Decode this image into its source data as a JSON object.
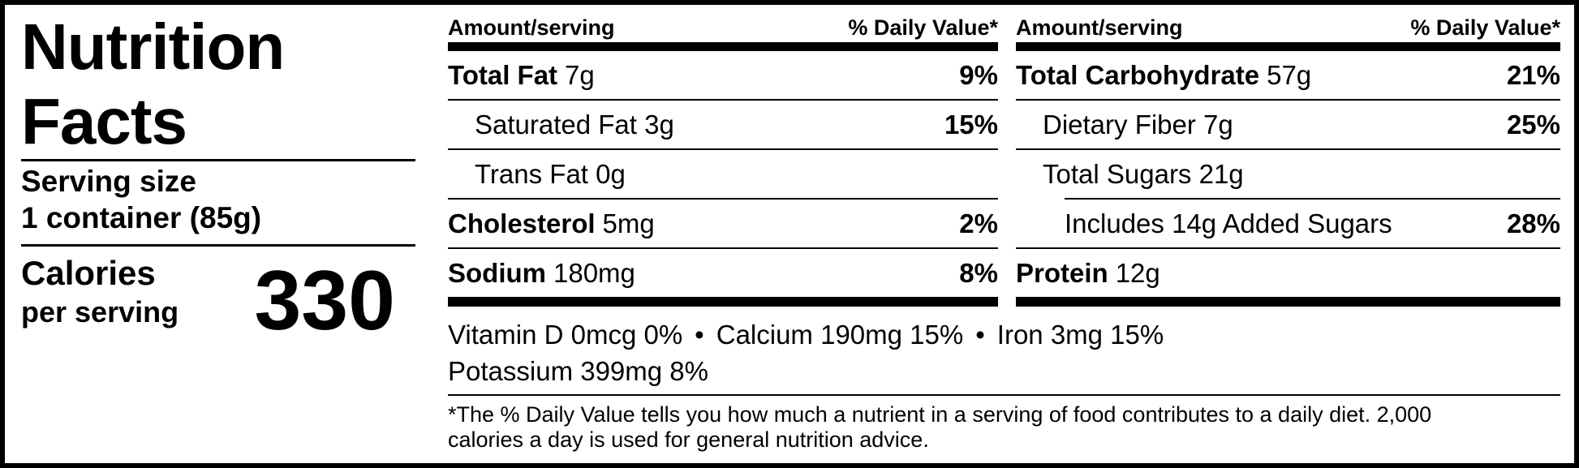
{
  "label": {
    "title_lines": [
      "Nutrition",
      "Facts"
    ],
    "serving": {
      "label": "Serving size",
      "value": "1 container (85g)"
    },
    "calories": {
      "label": "Calories",
      "sublabel": "per serving",
      "value": "330"
    }
  },
  "panels": [
    {
      "header_left": "Amount/serving",
      "header_right": "% Daily Value*",
      "rows": [
        {
          "bold": "Total Fat",
          "normal": "7g",
          "dv": "9%"
        },
        {
          "bold": "",
          "normal": "Saturated Fat 3g",
          "dv": "15%"
        },
        {
          "bold": "",
          "normal": "Trans Fat 0g",
          "dv": ""
        },
        {
          "bold": "Cholesterol",
          "normal": "5mg",
          "dv": "2%"
        },
        {
          "bold": "Sodium",
          "normal": "180mg",
          "dv": "8%"
        }
      ]
    },
    {
      "header_left": "Amount/serving",
      "header_right": "% Daily Value*",
      "rows": [
        {
          "bold": "Total Carbohydrate",
          "normal": "57g",
          "dv": "21%"
        },
        {
          "bold": "",
          "normal": "Dietary Fiber 7g",
          "dv": "25%"
        },
        {
          "bold": "",
          "normal": "Total Sugars 21g",
          "dv": ""
        },
        {
          "bold": "",
          "normal": "Includes 14g Added Sugars",
          "dv": "28%"
        },
        {
          "bold": "Protein",
          "normal": "12g",
          "dv": ""
        }
      ]
    }
  ],
  "micronutrients": {
    "bullet": "•",
    "line1_items": [
      "Vitamin D 0mcg 0%",
      "Calcium 190mg 15%",
      "Iron 3mg 15%"
    ],
    "line2": "Potassium 399mg 8%"
  },
  "footnote_lines": [
    "*The % Daily Value tells you how much a nutrient in a serving of food contributes to a daily diet. 2,000",
    "calories a day is used for general nutrition advice."
  ]
}
